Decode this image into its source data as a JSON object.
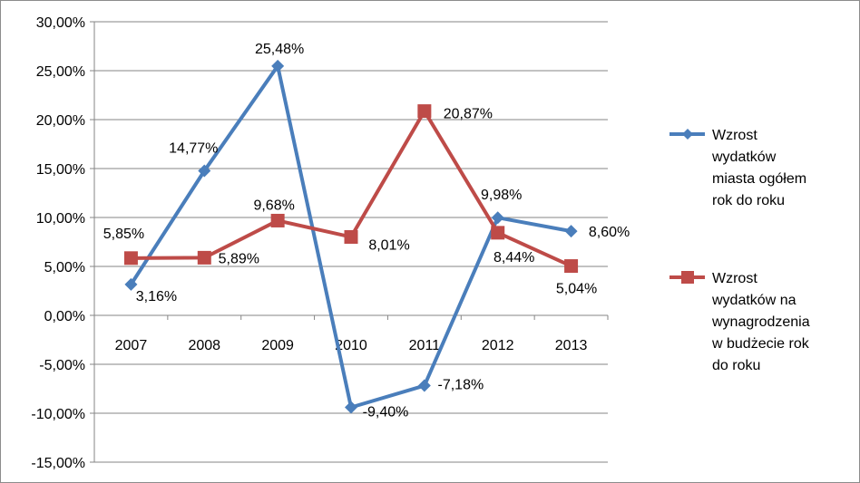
{
  "chart_data": {
    "type": "line",
    "title": "",
    "xlabel": "",
    "ylabel": "",
    "categories": [
      "2007",
      "2008",
      "2009",
      "2010",
      "2011",
      "2012",
      "2013"
    ],
    "ylim": [
      -15,
      30
    ],
    "ytick_step": 5,
    "ytick_labels": [
      "30,00%",
      "25,00%",
      "20,00%",
      "15,00%",
      "10,00%",
      "5,00%",
      "0,00%",
      "-5,00%",
      "-10,00%",
      "-15,00%"
    ],
    "grid": true,
    "legend_position": "right",
    "series": [
      {
        "name": "Wzrost wydatków miasta ogółem rok do roku",
        "legend_lines": [
          "Wzrost",
          "wydatków",
          "miasta ogółem",
          "rok do roku"
        ],
        "color": "#4a7ebb",
        "marker": "diamond",
        "values": [
          3.16,
          14.77,
          25.48,
          -9.4,
          -7.18,
          9.98,
          8.6
        ],
        "labels": [
          "3,16%",
          "14,77%",
          "25,48%",
          "-9,40%",
          "-7,18%",
          "9,98%",
          "8,60%"
        ]
      },
      {
        "name": "Wzrost wydatków na wynagrodzenia w budżecie rok do roku",
        "legend_lines": [
          "Wzrost",
          "wydatków na",
          "wynagrodzenia",
          "w budżecie rok",
          "do roku"
        ],
        "color": "#be4b48",
        "marker": "square",
        "values": [
          5.85,
          5.89,
          9.68,
          8.01,
          20.87,
          8.44,
          5.04
        ],
        "labels": [
          "5,85%",
          "5,89%",
          "9,68%",
          "8,01%",
          "20,87%",
          "8,44%",
          "5,04%"
        ]
      }
    ]
  }
}
